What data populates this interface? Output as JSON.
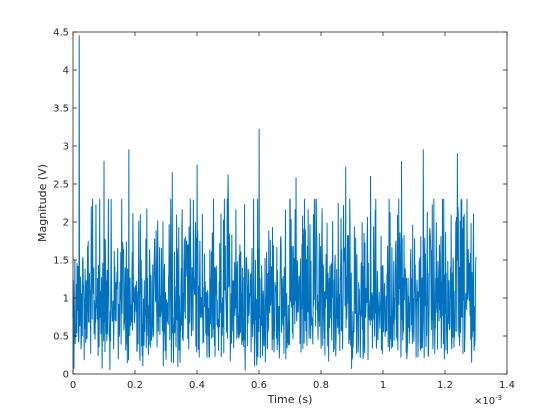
{
  "chart_data": {
    "type": "line",
    "title": "",
    "xlabel": "Time (s)",
    "ylabel": "Magnitude (V)",
    "x_exponent_label": "×10",
    "x_exponent_power": "-3",
    "xlim": [
      0,
      1.4
    ],
    "ylim": [
      0,
      4.5
    ],
    "x_ticks": [
      0,
      0.2,
      0.4,
      0.6,
      0.8,
      1,
      1.2,
      1.4
    ],
    "x_tick_labels": [
      "0",
      "0.2",
      "0.4",
      "0.6",
      "0.8",
      "1",
      "1.2",
      "1.4"
    ],
    "y_ticks": [
      0,
      0.5,
      1,
      1.5,
      2,
      2.5,
      3,
      3.5,
      4,
      4.5
    ],
    "y_tick_labels": [
      "0",
      "0.5",
      "1",
      "1.5",
      "2",
      "2.5",
      "3",
      "3.5",
      "4",
      "4.5"
    ],
    "grid": false,
    "box": true,
    "series": [
      {
        "color": "#0072bd",
        "x_range": [
          0,
          1.3
        ],
        "num_points": 1300,
        "mean": 1.0,
        "typical_range": [
          0.3,
          2.1
        ],
        "peaks": [
          {
            "x": 0.02,
            "y": 4.45
          },
          {
            "x": 0.6,
            "y": 3.22
          },
          {
            "x": 0.18,
            "y": 2.95
          },
          {
            "x": 1.13,
            "y": 2.95
          },
          {
            "x": 1.24,
            "y": 2.9
          },
          {
            "x": 1.06,
            "y": 2.8
          },
          {
            "x": 0.1,
            "y": 2.8
          },
          {
            "x": 0.4,
            "y": 2.75
          },
          {
            "x": 0.88,
            "y": 2.72
          },
          {
            "x": 0.32,
            "y": 2.65
          },
          {
            "x": 0.5,
            "y": 2.62
          },
          {
            "x": 0.96,
            "y": 2.6
          },
          {
            "x": 0.72,
            "y": 2.58
          }
        ]
      }
    ]
  }
}
